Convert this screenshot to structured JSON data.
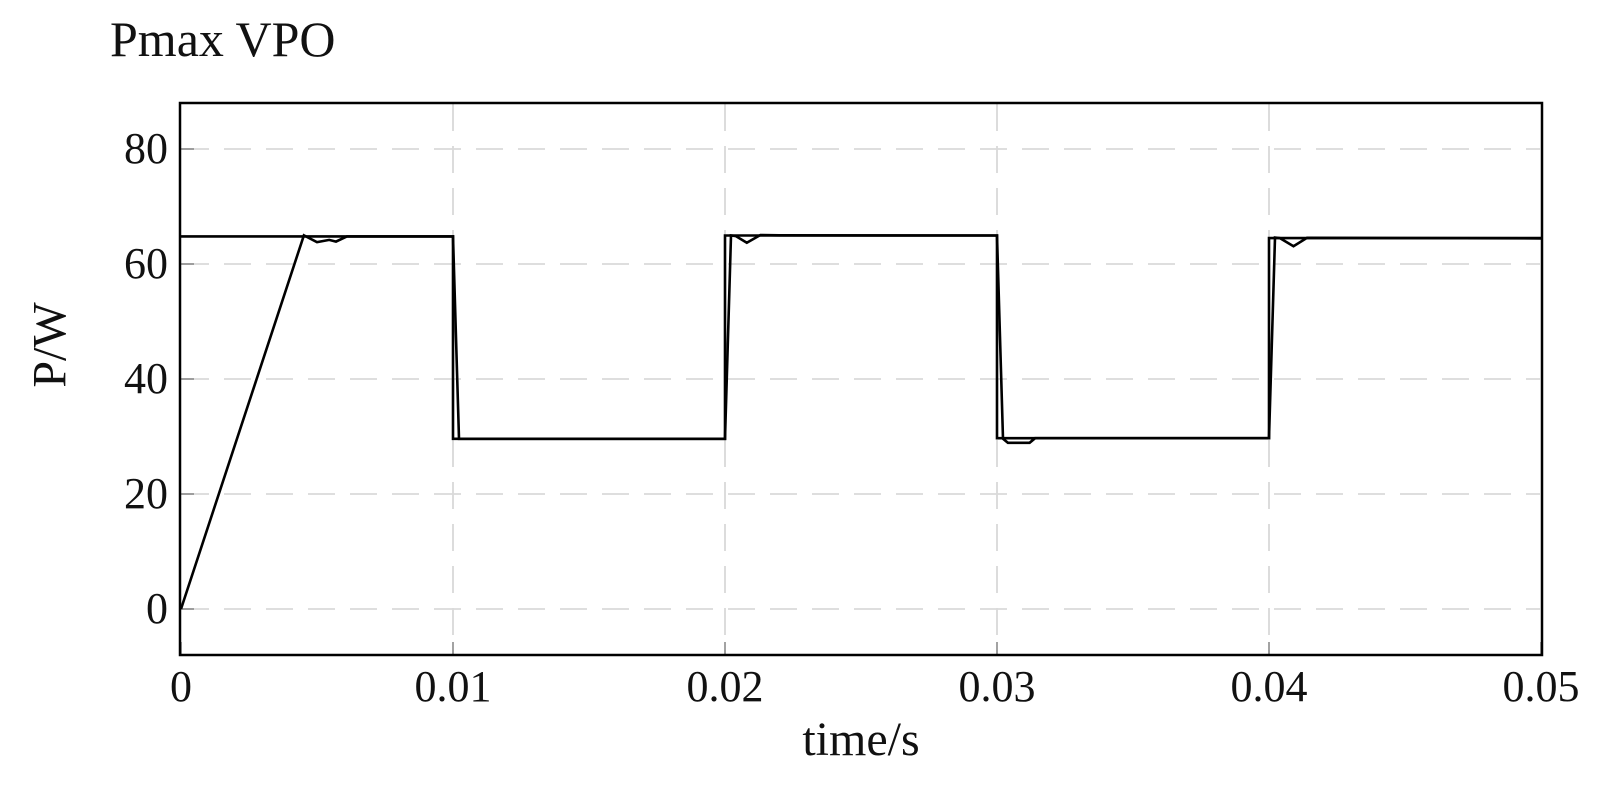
{
  "chart_data": {
    "type": "line",
    "title": "Pmax VPO",
    "xlabel": "time/s",
    "ylabel": "P/W",
    "xlim": [
      0,
      0.05
    ],
    "ylim": [
      -8,
      88
    ],
    "xticks": {
      "values": [
        0,
        0.01,
        0.02,
        0.03,
        0.04,
        0.05
      ],
      "labels": [
        "0",
        "0.01",
        "0.02",
        "0.03",
        "0.04",
        "0.05"
      ]
    },
    "yticks": {
      "values": [
        0,
        20,
        40,
        60,
        80
      ],
      "labels": [
        "0",
        "20",
        "40",
        "60",
        "80"
      ]
    },
    "grid": "dashed",
    "legend_position": "none",
    "series": [
      {
        "name": "Pmax",
        "description": "maximum available power reference (square wave)",
        "points": [
          [
            0,
            64.8
          ],
          [
            0.01,
            64.8
          ],
          [
            0.01,
            29.6
          ],
          [
            0.02,
            29.6
          ],
          [
            0.02,
            64.95
          ],
          [
            0.03,
            64.95
          ],
          [
            0.03,
            29.7
          ],
          [
            0.04,
            29.7
          ],
          [
            0.04,
            64.5
          ],
          [
            0.05,
            64.5
          ]
        ]
      },
      {
        "name": "VPO",
        "description": "tracked power with start-up ramp and step transients",
        "points": [
          [
            0,
            0
          ],
          [
            0.00452,
            65.0
          ],
          [
            0.005,
            63.8
          ],
          [
            0.00545,
            64.2
          ],
          [
            0.0057,
            63.9
          ],
          [
            0.0061,
            64.8
          ],
          [
            0.01,
            64.8
          ],
          [
            0.01022,
            29.6
          ],
          [
            0.02,
            29.6
          ],
          [
            0.02022,
            64.95
          ],
          [
            0.0204,
            64.85
          ],
          [
            0.0208,
            63.7
          ],
          [
            0.0213,
            65.05
          ],
          [
            0.022,
            65.0
          ],
          [
            0.03,
            64.95
          ],
          [
            0.03022,
            29.6
          ],
          [
            0.0304,
            28.9
          ],
          [
            0.0312,
            28.9
          ],
          [
            0.0314,
            29.7
          ],
          [
            0.04,
            29.7
          ],
          [
            0.04022,
            64.6
          ],
          [
            0.0404,
            64.5
          ],
          [
            0.0409,
            63.1
          ],
          [
            0.0414,
            64.55
          ],
          [
            0.05,
            64.45
          ]
        ]
      }
    ],
    "colors": {
      "line": "#000000",
      "grid": "#d9d9d9",
      "axis": "#000000",
      "tick": "#8c8c8c",
      "background": "#ffffff",
      "text": "#111111"
    }
  }
}
